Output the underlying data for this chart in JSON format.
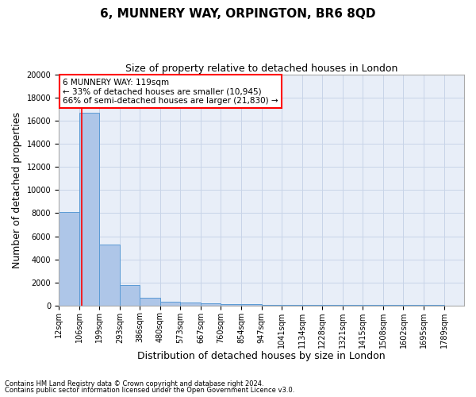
{
  "title": "6, MUNNERY WAY, ORPINGTON, BR6 8QD",
  "subtitle": "Size of property relative to detached houses in London",
  "xlabel": "Distribution of detached houses by size in London",
  "ylabel": "Number of detached properties",
  "footnote1": "Contains HM Land Registry data © Crown copyright and database right 2024.",
  "footnote2": "Contains public sector information licensed under the Open Government Licence v3.0.",
  "annotation_line1": "6 MUNNERY WAY: 119sqm",
  "annotation_line2": "← 33% of detached houses are smaller (10,945)",
  "annotation_line3": "66% of semi-detached houses are larger (21,830) →",
  "bar_edges": [
    12,
    106,
    199,
    293,
    386,
    480,
    573,
    667,
    760,
    854,
    947,
    1041,
    1134,
    1228,
    1321,
    1415,
    1508,
    1602,
    1695,
    1789,
    1882
  ],
  "bar_heights": [
    8100,
    16700,
    5300,
    1750,
    650,
    330,
    230,
    180,
    140,
    100,
    80,
    60,
    50,
    40,
    35,
    28,
    22,
    18,
    14,
    10
  ],
  "bar_color": "#aec6e8",
  "bar_edge_color": "#5b9bd5",
  "vline_x": 119,
  "vline_color": "red",
  "ylim": [
    0,
    20000
  ],
  "yticks": [
    0,
    2000,
    4000,
    6000,
    8000,
    10000,
    12000,
    14000,
    16000,
    18000,
    20000
  ],
  "grid_color": "#c8d4e8",
  "bg_color": "#e8eef8",
  "title_fontsize": 11,
  "subtitle_fontsize": 9,
  "xlabel_fontsize": 9,
  "ylabel_fontsize": 9,
  "tick_fontsize": 7,
  "annot_fontsize": 7.5
}
